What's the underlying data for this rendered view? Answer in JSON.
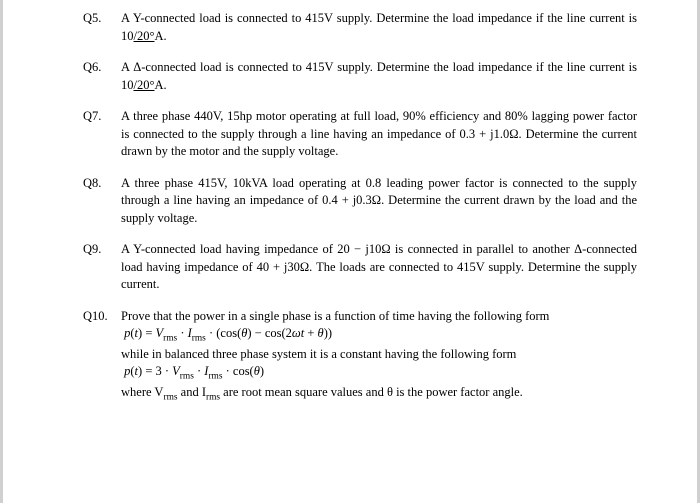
{
  "questions": [
    {
      "num": "Q5.",
      "body": "A Y-connected load is connected to 415V supply. Determine the load impedance if the line current is 10<span class='underline'>/20°</span>A."
    },
    {
      "num": "Q6.",
      "body": "A Δ-connected load is connected to 415V supply. Determine the load impedance if the line current is 10<span class='underline'>/20°</span>A."
    },
    {
      "num": "Q7.",
      "body": "A three phase 440V, 15hp motor operating at full load, 90% efficiency and 80% lagging power factor is connected to the supply through a line having an impedance of 0.3 + j1.0Ω. Determine the current drawn by the motor and the supply voltage."
    },
    {
      "num": "Q8.",
      "body": "A three phase 415V, 10kVA load operating at 0.8 leading power factor is connected to the supply through a line having an impedance of 0.4 + j0.3Ω. Determine the current drawn by the load and the supply voltage."
    },
    {
      "num": "Q9.",
      "body": "A Y-connected load having impedance of 20 − j10Ω is connected in parallel to another Δ-connected load having impedance of 40 + j30Ω. The loads are connected to 415V supply. Determine the supply current."
    },
    {
      "num": "Q10.",
      "body": "Prove that the power in a single phase is a function of time having the following form<br><span class='formula'>&nbsp;<span class='it'>p</span>(<span class='it'>t</span>) = <span class='it'>V</span><span class='sub'>rms</span> · <span class='it'>I</span><span class='sub'>rms</span> · (cos(<span class='it'>θ</span>) − cos(2<span class='it'>ωt</span> + <span class='it'>θ</span>))</span><br>while in balanced three phase system it is a constant having the following form<br><span class='formula'>&nbsp;<span class='it'>p</span>(<span class='it'>t</span>) = 3 · <span class='it'>V</span><span class='sub'>rms</span> · <span class='it'>I</span><span class='sub'>rms</span> · cos(<span class='it'>θ</span>)</span><br>where V<span class='sub'>rms</span> and I<span class='sub'>rms</span> are root mean square values and θ is the power factor angle."
    }
  ]
}
